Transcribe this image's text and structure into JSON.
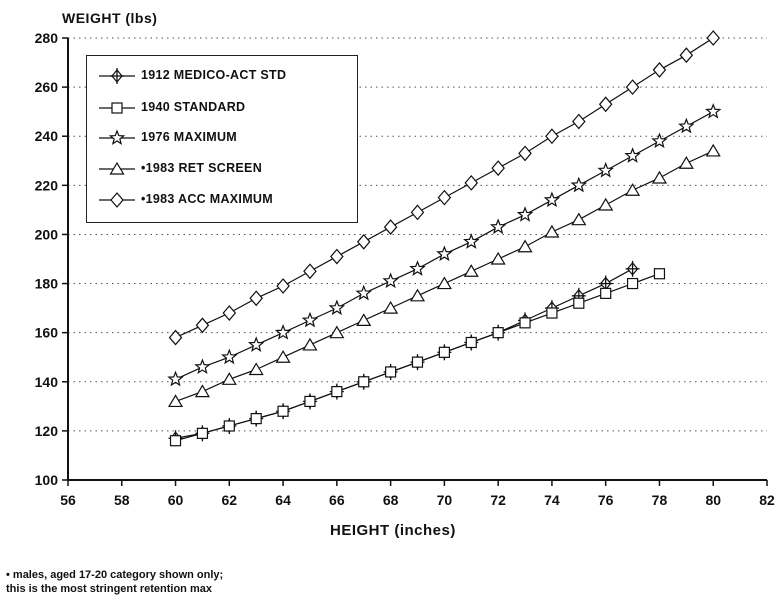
{
  "chart_data": {
    "type": "line",
    "ylabel": "WEIGHT (lbs)",
    "xlabel": "HEIGHT (inches)",
    "xlim": [
      56,
      82
    ],
    "ylim": [
      100,
      280
    ],
    "xticks": [
      56,
      58,
      60,
      62,
      64,
      66,
      68,
      70,
      72,
      74,
      76,
      78,
      80,
      82
    ],
    "yticks": [
      100,
      120,
      140,
      160,
      180,
      200,
      220,
      240,
      260,
      280
    ],
    "grid": "horizontal-dotted",
    "legend_position": "top-left",
    "series": [
      {
        "name": "1912 MEDICO-ACT STD",
        "marker": "plus-diamond",
        "x": [
          60,
          61,
          62,
          63,
          64,
          65,
          66,
          67,
          68,
          69,
          70,
          71,
          72,
          73,
          74,
          75,
          76,
          77
        ],
        "y": [
          117,
          119,
          122,
          125,
          128,
          132,
          136,
          140,
          144,
          148,
          152,
          156,
          160,
          165,
          170,
          175,
          180,
          186
        ]
      },
      {
        "name": "1940 STANDARD",
        "marker": "square",
        "x": [
          60,
          61,
          62,
          63,
          64,
          65,
          66,
          67,
          68,
          69,
          70,
          71,
          72,
          73,
          74,
          75,
          76,
          77,
          78
        ],
        "y": [
          116,
          119,
          122,
          125,
          128,
          132,
          136,
          140,
          144,
          148,
          152,
          156,
          160,
          164,
          168,
          172,
          176,
          180,
          184
        ]
      },
      {
        "name": "1976 MAXIMUM",
        "marker": "star",
        "x": [
          60,
          61,
          62,
          63,
          64,
          65,
          66,
          67,
          68,
          69,
          70,
          71,
          72,
          73,
          74,
          75,
          76,
          77,
          78,
          79,
          80
        ],
        "y": [
          141,
          146,
          150,
          155,
          160,
          165,
          170,
          176,
          181,
          186,
          192,
          197,
          203,
          208,
          214,
          220,
          226,
          232,
          238,
          244,
          250
        ]
      },
      {
        "name": "•1983 RET SCREEN",
        "marker": "triangle",
        "x": [
          60,
          61,
          62,
          63,
          64,
          65,
          66,
          67,
          68,
          69,
          70,
          71,
          72,
          73,
          74,
          75,
          76,
          77,
          78,
          79,
          80
        ],
        "y": [
          132,
          136,
          141,
          145,
          150,
          155,
          160,
          165,
          170,
          175,
          180,
          185,
          190,
          195,
          201,
          206,
          212,
          218,
          223,
          229,
          234
        ]
      },
      {
        "name": "•1983 ACC MAXIMUM",
        "marker": "diamond",
        "x": [
          60,
          61,
          62,
          63,
          64,
          65,
          66,
          67,
          68,
          69,
          70,
          71,
          72,
          73,
          74,
          75,
          76,
          77,
          78,
          79,
          80
        ],
        "y": [
          158,
          163,
          168,
          174,
          179,
          185,
          191,
          197,
          203,
          209,
          215,
          221,
          227,
          233,
          240,
          246,
          253,
          260,
          267,
          273,
          280
        ]
      }
    ]
  },
  "footnote": {
    "line1": "• males, aged 17-20 category shown only;",
    "line2": "this is the most stringent retention max"
  }
}
